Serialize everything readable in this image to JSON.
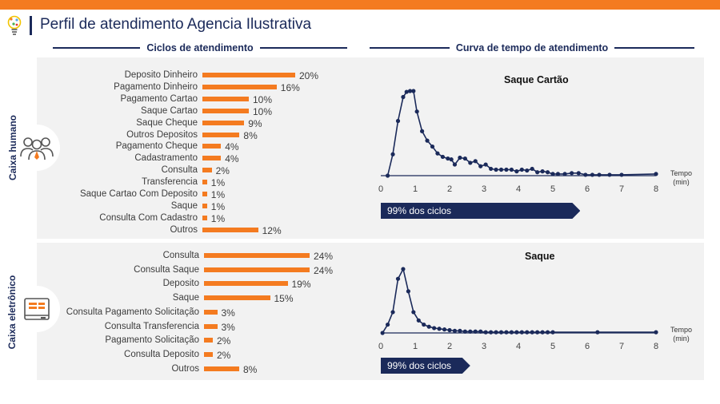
{
  "header": {
    "title": "Perfil de atendimento Agencia Ilustrativa",
    "accent_color": "#f47b20",
    "brand_color": "#1b2a5a"
  },
  "columns": {
    "left_title": "Ciclos de atendimento",
    "right_title": "Curva de tempo de atendimento"
  },
  "sections": [
    {
      "label": "Caixa humano",
      "icon": "people-group-icon"
    },
    {
      "label": "Caixa eletrônico",
      "icon": "atm-machine-icon"
    }
  ],
  "chart_data": [
    {
      "type": "bar",
      "orientation": "horizontal",
      "section": "Caixa humano",
      "categories": [
        "Deposito Dinheiro",
        "Pagamento Dinheiro",
        "Pagamento Cartao",
        "Saque Cartao",
        "Saque Cheque",
        "Outros Depositos",
        "Pagamento Cheque",
        "Cadastramento",
        "Consulta",
        "Transferencia",
        "Saque Cartao Com Deposito",
        "Saque",
        "Consulta Com Cadastro",
        "Outros"
      ],
      "values": [
        20,
        16,
        10,
        10,
        9,
        8,
        4,
        4,
        2,
        1,
        1,
        1,
        1,
        12
      ],
      "value_labels": [
        "20%",
        "16%",
        "10%",
        "10%",
        "9%",
        "8%",
        "4%",
        "4%",
        "2%",
        "1%",
        "1%",
        "1%",
        "1%",
        "12%"
      ],
      "color": "#f47b20"
    },
    {
      "type": "line",
      "section": "Caixa humano",
      "title": "Saque Cartão",
      "xlabel": "Tempo\n(min)",
      "x_ticks": [
        0,
        1,
        2,
        3,
        4,
        5,
        6,
        7,
        8
      ],
      "xlim": [
        0,
        8
      ],
      "x": [
        0.2,
        0.35,
        0.5,
        0.65,
        0.75,
        0.85,
        0.95,
        1.05,
        1.2,
        1.35,
        1.5,
        1.65,
        1.8,
        1.95,
        2.05,
        2.15,
        2.3,
        2.45,
        2.6,
        2.75,
        2.9,
        3.05,
        3.2,
        3.35,
        3.5,
        3.65,
        3.8,
        3.95,
        4.1,
        4.25,
        4.4,
        4.55,
        4.7,
        4.85,
        5.0,
        5.15,
        5.35,
        5.55,
        5.75,
        5.95,
        6.15,
        6.35,
        6.65,
        7.0,
        8.0
      ],
      "y": [
        0,
        25,
        64,
        92,
        98,
        99,
        99,
        75,
        52,
        41,
        34,
        26,
        22,
        20,
        19,
        13,
        21,
        20,
        15,
        17,
        11,
        13,
        8,
        7,
        7,
        7,
        7,
        5,
        7,
        6,
        8,
        4,
        5,
        4,
        2,
        2,
        2,
        3,
        3,
        1,
        1,
        1,
        1,
        1,
        2
      ],
      "color": "#1b2a5a",
      "annotation": "99% dos ciclos",
      "annotation_end_x": 5.8
    },
    {
      "type": "bar",
      "orientation": "horizontal",
      "section": "Caixa eletrônico",
      "categories": [
        "Consulta",
        "Consulta Saque",
        "Deposito",
        "Saque",
        "Consulta Pagamento Solicitação",
        "Consulta Transferencia",
        "Pagamento Solicitação",
        "Consulta Deposito",
        "Outros"
      ],
      "values": [
        24,
        24,
        19,
        15,
        3,
        3,
        2,
        2,
        8
      ],
      "value_labels": [
        "24%",
        "24%",
        "19%",
        "15%",
        "3%",
        "3%",
        "2%",
        "2%",
        "8%"
      ],
      "color": "#f47b20"
    },
    {
      "type": "line",
      "section": "Caixa eletrônico",
      "title": "Saque",
      "xlabel": "Tempo\n(min)",
      "x_ticks": [
        0,
        1,
        2,
        3,
        4,
        5,
        6,
        7,
        8
      ],
      "xlim": [
        0,
        8
      ],
      "x": [
        0.05,
        0.2,
        0.35,
        0.5,
        0.65,
        0.8,
        0.95,
        1.1,
        1.25,
        1.4,
        1.55,
        1.7,
        1.85,
        2.0,
        2.15,
        2.3,
        2.45,
        2.6,
        2.75,
        2.9,
        3.05,
        3.2,
        3.35,
        3.5,
        3.65,
        3.8,
        3.95,
        4.1,
        4.25,
        4.4,
        4.55,
        4.7,
        4.85,
        5.0,
        6.3,
        8.0
      ],
      "y": [
        0,
        12,
        30,
        78,
        92,
        60,
        30,
        18,
        12,
        9,
        7,
        6,
        5,
        4,
        3,
        3,
        2,
        2,
        2,
        2,
        1,
        1,
        1,
        1,
        1,
        1,
        1,
        1,
        1,
        1,
        1,
        1,
        1,
        1,
        1,
        1
      ],
      "color": "#1b2a5a",
      "annotation": "99% dos ciclos",
      "annotation_end_x": 2.6
    }
  ]
}
